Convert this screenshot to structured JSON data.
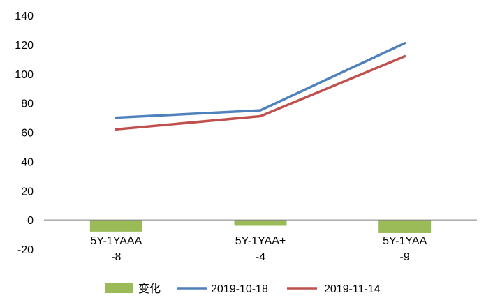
{
  "chart_data": {
    "type": "bar",
    "categories": [
      "5Y-1YAAA",
      "5Y-1YAA+",
      "5Y-1YAA"
    ],
    "ylim": [
      -20,
      140
    ],
    "yticks": [
      140,
      120,
      100,
      80,
      60,
      40,
      20,
      0,
      -20
    ],
    "grid": false,
    "legend_position": "bottom",
    "series": [
      {
        "name": "变化",
        "type": "bar",
        "values": [
          -8,
          -4,
          -9
        ],
        "data_labels": [
          "-8",
          "-4",
          "-9"
        ],
        "color": "#9BBB59"
      },
      {
        "name": "2019-10-18",
        "type": "line",
        "values": [
          70,
          75,
          121
        ],
        "color": "#4F81BD"
      },
      {
        "name": "2019-11-14",
        "type": "line",
        "values": [
          62,
          71,
          112
        ],
        "color": "#C0504D"
      }
    ]
  }
}
